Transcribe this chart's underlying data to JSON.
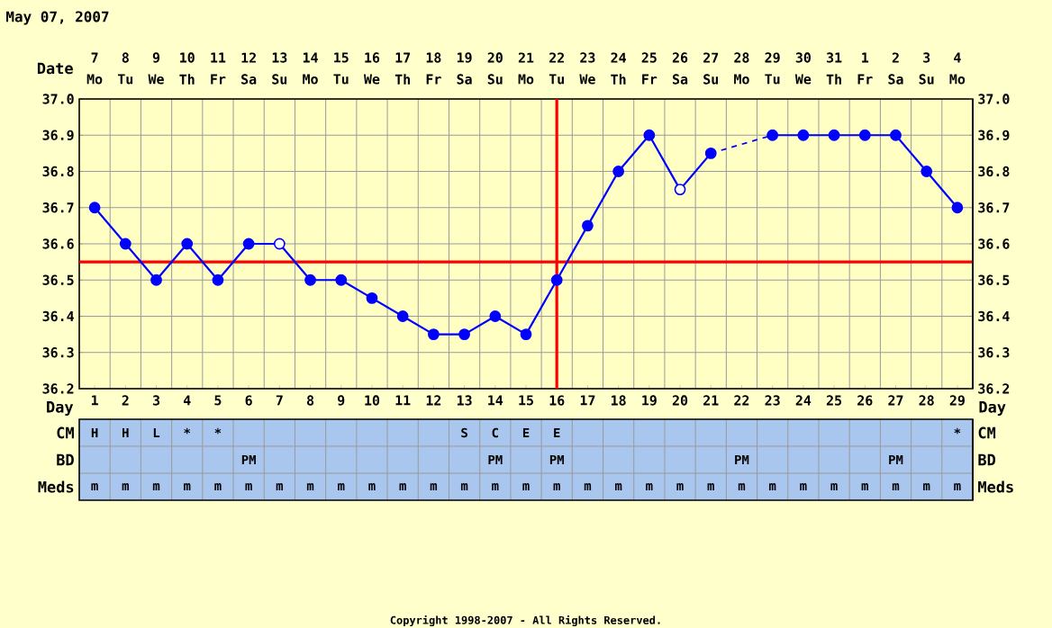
{
  "chart_data": [
    {
      "type": "line",
      "title": "May 07, 2007",
      "xlabel": "Day",
      "categories": [
        "1",
        "2",
        "3",
        "4",
        "5",
        "6",
        "7",
        "8",
        "9",
        "10",
        "11",
        "12",
        "13",
        "14",
        "15",
        "16",
        "17",
        "18",
        "19",
        "20",
        "21",
        "22",
        "23",
        "24",
        "25",
        "26",
        "27",
        "28",
        "29"
      ],
      "series": [
        {
          "type": "line",
          "color": "#0000ff",
          "marker": "none",
          "values": [
            36.7,
            36.6,
            36.5,
            36.6,
            36.5,
            36.6,
            36.6,
            36.5,
            36.5,
            36.45,
            36.4,
            36.35,
            36.35,
            36.4,
            36.35,
            36.5,
            36.65,
            36.8,
            36.9,
            36.75,
            36.85,
            null,
            36.9,
            36.9,
            36.9,
            36.9,
            36.9,
            36.8,
            36.7
          ]
        },
        {
          "type": "scatter",
          "color": "#0000ff",
          "marker": "circle",
          "values": [
            36.7,
            36.6,
            36.5,
            36.6,
            36.5,
            36.6,
            null,
            36.5,
            36.5,
            36.45,
            36.4,
            36.35,
            36.35,
            36.4,
            36.35,
            36.5,
            36.65,
            36.8,
            36.9,
            null,
            36.85,
            null,
            36.9,
            36.9,
            36.9,
            36.9,
            36.9,
            36.8,
            36.7
          ]
        },
        {
          "type": "scatter",
          "color": "#ffffff",
          "marker": "circle",
          "values": [
            null,
            null,
            null,
            null,
            null,
            null,
            36.6,
            null,
            null,
            null,
            null,
            null,
            null,
            null,
            null,
            null,
            null,
            null,
            null,
            36.75,
            null,
            null,
            null,
            null,
            null,
            null,
            null,
            null,
            null
          ]
        }
      ],
      "ylim": [
        36.2,
        37.0
      ],
      "yticks": [
        36.2,
        36.3,
        36.4,
        36.5,
        36.6,
        36.7,
        36.8,
        36.9,
        {
          "value": 37.0,
          "label": "37.0"
        }
      ],
      "y2lim": [
        36.2,
        37.0
      ],
      "y2ticks": [
        36.2,
        36.3,
        36.4,
        36.5,
        36.6,
        36.7,
        36.8,
        36.9,
        {
          "value": 37.0,
          "label": "37.0"
        }
      ],
      "grid": true,
      "ref_lines": [
        {
          "axis": "y",
          "value": 36.55,
          "color": "#ff0000"
        },
        {
          "axis": "x",
          "value": "16",
          "color": "#ff0000"
        }
      ],
      "annotations": [
        "Date",
        "7",
        "Mo",
        "8",
        "Tu",
        "9",
        "We",
        "10",
        "Th",
        "11",
        "Fr",
        "12",
        "Sa",
        "13",
        "Su",
        "14",
        "Mo",
        "15",
        "Tu",
        "16",
        "We",
        "17",
        "Th",
        "18",
        "Fr",
        "19",
        "Sa",
        "20",
        "Su",
        "21",
        "Mo",
        "22",
        "Tu",
        "23",
        "We",
        "24",
        "Th",
        "25",
        "Fr",
        "26",
        "Sa",
        "27",
        "Su",
        "28",
        "Mo",
        "29",
        "Tu",
        "30",
        "We",
        "31",
        "Th",
        "1",
        "Fr",
        "2",
        "Sa",
        "3",
        "Su",
        "4",
        "Mo"
      ]
    },
    {
      "type": "heatmap",
      "tick_labels": "y",
      "categories": [
        "1",
        "2",
        "3",
        "4",
        "5",
        "6",
        "7",
        "8",
        "9",
        "10",
        "11",
        "12",
        "13",
        "14",
        "15",
        "16",
        "17",
        "18",
        "19",
        "20",
        "21",
        "22",
        "23",
        "24",
        "25",
        "26",
        "27",
        "28",
        "29"
      ],
      "y_categories": [
        "CM",
        "BD",
        "Meds"
      ],
      "y2_categories": [
        "CM",
        "BD",
        "Meds"
      ],
      "cells": [
        [
          null,
          null,
          null,
          null,
          null,
          null,
          null,
          null,
          null,
          null,
          null,
          null,
          null,
          null,
          null,
          null,
          null,
          null,
          null,
          null,
          null,
          null,
          null,
          null,
          null,
          null,
          null,
          null,
          null
        ],
        [
          null,
          null,
          null,
          null,
          null,
          null,
          null,
          null,
          null,
          null,
          null,
          null,
          null,
          null,
          null,
          null,
          null,
          null,
          null,
          null,
          null,
          null,
          null,
          null,
          null,
          null,
          null,
          null,
          null
        ],
        [
          null,
          null,
          null,
          null,
          null,
          null,
          null,
          null,
          null,
          null,
          null,
          null,
          null,
          null,
          null,
          null,
          null,
          null,
          null,
          null,
          null,
          null,
          null,
          null,
          null,
          null,
          null,
          null,
          null
        ]
      ],
      "cell_labels": [
        [
          "H",
          "H",
          "L",
          "*",
          "*",
          null,
          null,
          null,
          null,
          null,
          null,
          null,
          "S",
          "C",
          "E",
          "E",
          null,
          null,
          null,
          null,
          null,
          null,
          null,
          null,
          null,
          null,
          null,
          null,
          "*"
        ],
        [
          null,
          null,
          null,
          null,
          null,
          "PM",
          null,
          null,
          null,
          null,
          null,
          null,
          null,
          "PM",
          null,
          "PM",
          null,
          null,
          null,
          null,
          null,
          "PM",
          null,
          null,
          null,
          null,
          "PM",
          null,
          null
        ],
        [
          "m",
          "m",
          "m",
          "m",
          "m",
          "m",
          "m",
          "m",
          "m",
          "m",
          "m",
          "m",
          "m",
          "m",
          "m",
          "m",
          "m",
          "m",
          "m",
          "m",
          "m",
          "m",
          "m",
          "m",
          "m",
          "m",
          "m",
          "m",
          "m"
        ]
      ],
      "annotations": [
        "Copyright 1998-2007 - All Rights Reserved."
      ]
    }
  ]
}
